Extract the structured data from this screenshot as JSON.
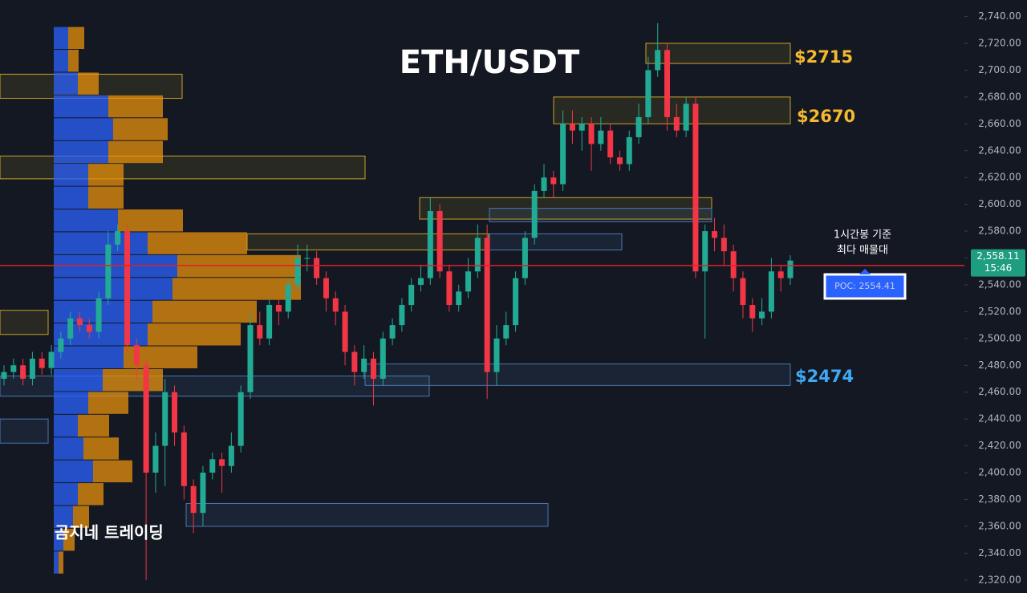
{
  "chart_data": {
    "type": "candlestick",
    "title": "ETH/USDT",
    "ylim": [
      2310.3,
      2752.3
    ],
    "yticks": [
      {
        "value": 2320,
        "label": "2,320.00"
      },
      {
        "value": 2340,
        "label": "2,340.00"
      },
      {
        "value": 2360,
        "label": "2,360.00"
      },
      {
        "value": 2380,
        "label": "2,380.00"
      },
      {
        "value": 2400,
        "label": "2,400.00"
      },
      {
        "value": 2420,
        "label": "2,420.00"
      },
      {
        "value": 2440,
        "label": "2,440.00"
      },
      {
        "value": 2460,
        "label": "2,460.00"
      },
      {
        "value": 2480,
        "label": "2,480.00"
      },
      {
        "value": 2500,
        "label": "2,500.00"
      },
      {
        "value": 2520,
        "label": "2,520.00"
      },
      {
        "value": 2540,
        "label": "2,540.00"
      },
      {
        "value": 2560,
        "label": "2,560.00"
      },
      {
        "value": 2580,
        "label": "2,580.00"
      },
      {
        "value": 2600,
        "label": "2,600.00"
      },
      {
        "value": 2620,
        "label": "2,620.00"
      },
      {
        "value": 2640,
        "label": "2,640.00"
      },
      {
        "value": 2660,
        "label": "2,660.00"
      },
      {
        "value": 2680,
        "label": "2,680.00"
      },
      {
        "value": 2700,
        "label": "2,700.00"
      },
      {
        "value": 2720,
        "label": "2,720.00"
      },
      {
        "value": 2740,
        "label": "2,740.00"
      }
    ],
    "up_color": "#22ab94",
    "down_color": "#f23645",
    "open": [
      2470,
      2475,
      2480,
      2470,
      2485,
      2478,
      2490,
      2500,
      2515,
      2510,
      2505,
      2530,
      2570,
      2580,
      2495,
      2480,
      2400,
      2420,
      2460,
      2430,
      2390,
      2370,
      2400,
      2410,
      2405,
      2420,
      2460,
      2510,
      2500,
      2525,
      2520,
      2540,
      2560,
      2560,
      2545,
      2530,
      2520,
      2490,
      2475,
      2485,
      2470,
      2500,
      2510,
      2525,
      2540,
      2545,
      2595,
      2550,
      2525,
      2535,
      2550,
      2575,
      2475,
      2500,
      2510,
      2545,
      2575,
      2610,
      2620,
      2615,
      2660,
      2655,
      2660,
      2645,
      2655,
      2635,
      2630,
      2650,
      2665,
      2700,
      2715,
      2665,
      2655,
      2675,
      2550,
      2580,
      2575,
      2565,
      2545,
      2525,
      2515,
      2520,
      2550,
      2545
    ],
    "high": [
      2480,
      2485,
      2485,
      2490,
      2490,
      2495,
      2505,
      2520,
      2520,
      2515,
      2535,
      2580,
      2585,
      2585,
      2500,
      2485,
      2430,
      2470,
      2465,
      2435,
      2395,
      2405,
      2415,
      2415,
      2430,
      2465,
      2520,
      2520,
      2530,
      2530,
      2545,
      2570,
      2570,
      2565,
      2550,
      2535,
      2525,
      2495,
      2495,
      2490,
      2505,
      2515,
      2530,
      2545,
      2555,
      2605,
      2600,
      2555,
      2540,
      2560,
      2585,
      2585,
      2510,
      2520,
      2550,
      2580,
      2615,
      2630,
      2625,
      2670,
      2670,
      2665,
      2665,
      2665,
      2660,
      2640,
      2655,
      2675,
      2710,
      2735,
      2720,
      2675,
      2680,
      2680,
      2585,
      2590,
      2585,
      2570,
      2550,
      2530,
      2530,
      2560,
      2555,
      2562
    ],
    "low": [
      2465,
      2470,
      2465,
      2465,
      2473,
      2473,
      2485,
      2495,
      2505,
      2500,
      2500,
      2525,
      2565,
      2490,
      2470,
      2320,
      2385,
      2390,
      2420,
      2380,
      2355,
      2360,
      2395,
      2385,
      2400,
      2415,
      2455,
      2495,
      2495,
      2510,
      2515,
      2535,
      2550,
      2540,
      2520,
      2510,
      2480,
      2465,
      2470,
      2450,
      2465,
      2495,
      2505,
      2520,
      2535,
      2540,
      2545,
      2520,
      2520,
      2530,
      2545,
      2455,
      2465,
      2495,
      2505,
      2540,
      2570,
      2605,
      2605,
      2610,
      2645,
      2640,
      2625,
      2640,
      2630,
      2625,
      2625,
      2645,
      2660,
      2695,
      2655,
      2650,
      2650,
      2545,
      2500,
      2565,
      2555,
      2535,
      2515,
      2505,
      2510,
      2515,
      2535,
      2540
    ],
    "close": [
      2475,
      2480,
      2470,
      2485,
      2478,
      2490,
      2500,
      2515,
      2510,
      2505,
      2530,
      2570,
      2580,
      2495,
      2480,
      2400,
      2420,
      2460,
      2430,
      2390,
      2370,
      2400,
      2410,
      2405,
      2420,
      2460,
      2510,
      2500,
      2525,
      2520,
      2540,
      2560,
      2560,
      2545,
      2530,
      2520,
      2490,
      2475,
      2485,
      2470,
      2500,
      2510,
      2525,
      2540,
      2545,
      2595,
      2550,
      2525,
      2535,
      2550,
      2575,
      2475,
      2500,
      2510,
      2545,
      2575,
      2610,
      2620,
      2615,
      2660,
      2655,
      2660,
      2645,
      2655,
      2635,
      2630,
      2650,
      2665,
      2700,
      2715,
      2665,
      2655,
      2675,
      2550,
      2580,
      2575,
      2565,
      2545,
      2525,
      2515,
      2520,
      2550,
      2545,
      2558.11
    ],
    "last_price": {
      "value": 2558.11,
      "label": "2,558.11"
    },
    "last_time": "15:46",
    "poc": {
      "value": 2554.41,
      "label": "POC: 2554.41"
    },
    "zones": [
      {
        "low": 2705,
        "high": 2720,
        "color": "#c9a227"
      },
      {
        "low": 2660,
        "high": 2680,
        "color": "#c9a227"
      },
      {
        "low": 2589,
        "high": 2605,
        "color": "#c9a227"
      },
      {
        "low": 2587,
        "high": 2597,
        "color": "#4a78b5"
      },
      {
        "low": 2566,
        "high": 2578,
        "color": "#c9a227"
      },
      {
        "low": 2566,
        "high": 2578,
        "color": "#4a78b5"
      },
      {
        "low": 2465,
        "high": 2481,
        "color": "#4a78b5"
      },
      {
        "low": 2457,
        "high": 2472,
        "color": "#4a78b5"
      },
      {
        "low": 2360,
        "high": 2377,
        "color": "#4a78b5"
      },
      {
        "low": 2422,
        "high": 2440,
        "color": "#4a78b5"
      },
      {
        "low": 2679,
        "high": 2697,
        "color": "#c9a227"
      },
      {
        "low": 2619,
        "high": 2636,
        "color": "#c9a227"
      },
      {
        "low": 2503,
        "high": 2521,
        "color": "#c9a227"
      }
    ],
    "volume_profile": {
      "buy_color": "#2962ff",
      "sell_color": "#e8900c",
      "levels": [
        2724,
        2707,
        2690,
        2673,
        2656,
        2639,
        2622,
        2605,
        2588,
        2571,
        2554,
        2537,
        2520,
        2503,
        2486,
        2469,
        2452,
        2435,
        2418,
        2401,
        2384,
        2367,
        2350,
        2333
      ],
      "buy": [
        18,
        18,
        30,
        68,
        74,
        68,
        43,
        43,
        80,
        117,
        154,
        148,
        123,
        117,
        87,
        61,
        43,
        30,
        37,
        49,
        30,
        24,
        12,
        6
      ],
      "sell": [
        20,
        13,
        26,
        68,
        68,
        68,
        44,
        44,
        81,
        124,
        154,
        160,
        130,
        116,
        92,
        75,
        50,
        39,
        44,
        49,
        32,
        20,
        14,
        6
      ]
    },
    "annotations": [
      "$2715",
      "$2670",
      "$2474",
      "1시간봉 기준",
      "최다 매물대",
      "곰지네 트레이딩"
    ]
  }
}
